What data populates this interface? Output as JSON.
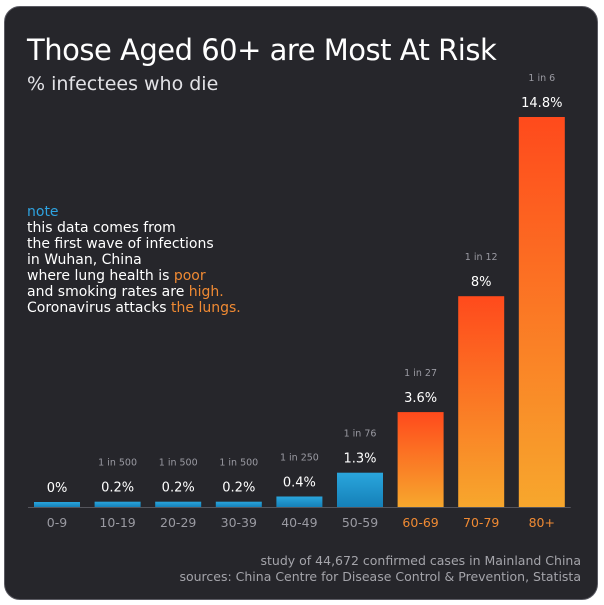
{
  "header": {
    "title": "Those Aged 60+ are Most At Risk",
    "subtitle": "% infectees who die"
  },
  "note": {
    "head": "note",
    "line1": "this data comes from",
    "line2": "the first wave of infections",
    "line3": "in Wuhan, China",
    "line4a": "where lung health is ",
    "line4b": "poor",
    "line5a": "and smoking rates are ",
    "line5b": "high.",
    "line6a": "Coronavirus attacks ",
    "line6b": "the lungs."
  },
  "footer": {
    "line1": "study of 44,672 confirmed cases in Mainland China",
    "line2": "sources: China Centre for Disease Control & Prevention, Statista"
  },
  "colors": {
    "background": "#26262b",
    "blue_top": "#2aa6dd",
    "blue_bottom": "#1580b8",
    "orange_top": "#ff4a1c",
    "orange_bottom": "#f7a72d",
    "axis_gray": "#9a9aa2",
    "axis_orange": "#f08a33"
  },
  "chart_data": {
    "type": "bar",
    "categories": [
      "0-9",
      "10-19",
      "20-29",
      "30-39",
      "40-49",
      "50-59",
      "60-69",
      "70-79",
      "80+"
    ],
    "values": [
      0,
      0.2,
      0.2,
      0.2,
      0.4,
      1.3,
      3.6,
      8,
      14.8
    ],
    "value_labels": [
      "0%",
      "0.2%",
      "0.2%",
      "0.2%",
      "0.4%",
      "1.3%",
      "3.6%",
      "8%",
      "14.8%"
    ],
    "ratio_labels": [
      "",
      "1 in 500",
      "1 in 500",
      "1 in 500",
      "1 in 250",
      "1 in 76",
      "1 in 27",
      "1 in 12",
      "1 in 6"
    ],
    "highlight": [
      false,
      false,
      false,
      false,
      false,
      false,
      true,
      true,
      true
    ],
    "title": "Those Aged 60+ are Most At Risk",
    "xlabel": "",
    "ylabel": "",
    "ylim": [
      0,
      14.8
    ],
    "grid": false,
    "legend": "none"
  }
}
